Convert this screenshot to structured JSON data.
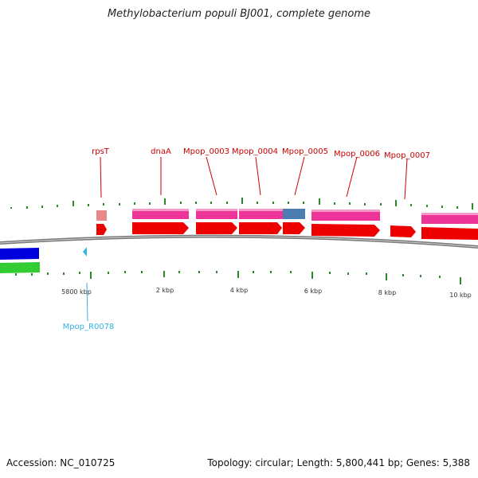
{
  "title": "Methylobacterium populi BJ001, complete genome",
  "accession": "Accession: NC_010725",
  "summary": "Topology: circular; Length: 5,800,441 bp; Genes: 5,388",
  "colors": {
    "backbone": "#8a8a8a",
    "cds": "#ee0000",
    "gene": "#ee3399",
    "rna": "#33b5e5",
    "tick": "#2a8a2a",
    "label": "#cc0000"
  },
  "coordinates": [
    {
      "label": "5800 kbp"
    },
    {
      "label": "2 kbp"
    },
    {
      "label": "4 kbp"
    },
    {
      "label": "6 kbp"
    },
    {
      "label": "8 kbp"
    },
    {
      "label": "10 kbp"
    }
  ],
  "genes": [
    {
      "label": "rpsT"
    },
    {
      "label": "dnaA"
    },
    {
      "label": "Mpop_0003"
    },
    {
      "label": "Mpop_0004"
    },
    {
      "label": "Mpop_0005"
    },
    {
      "label": "Mpop_0006"
    },
    {
      "label": "Mpop_0007"
    }
  ],
  "rna_features": [
    {
      "label": "Mpop_R0078"
    }
  ]
}
